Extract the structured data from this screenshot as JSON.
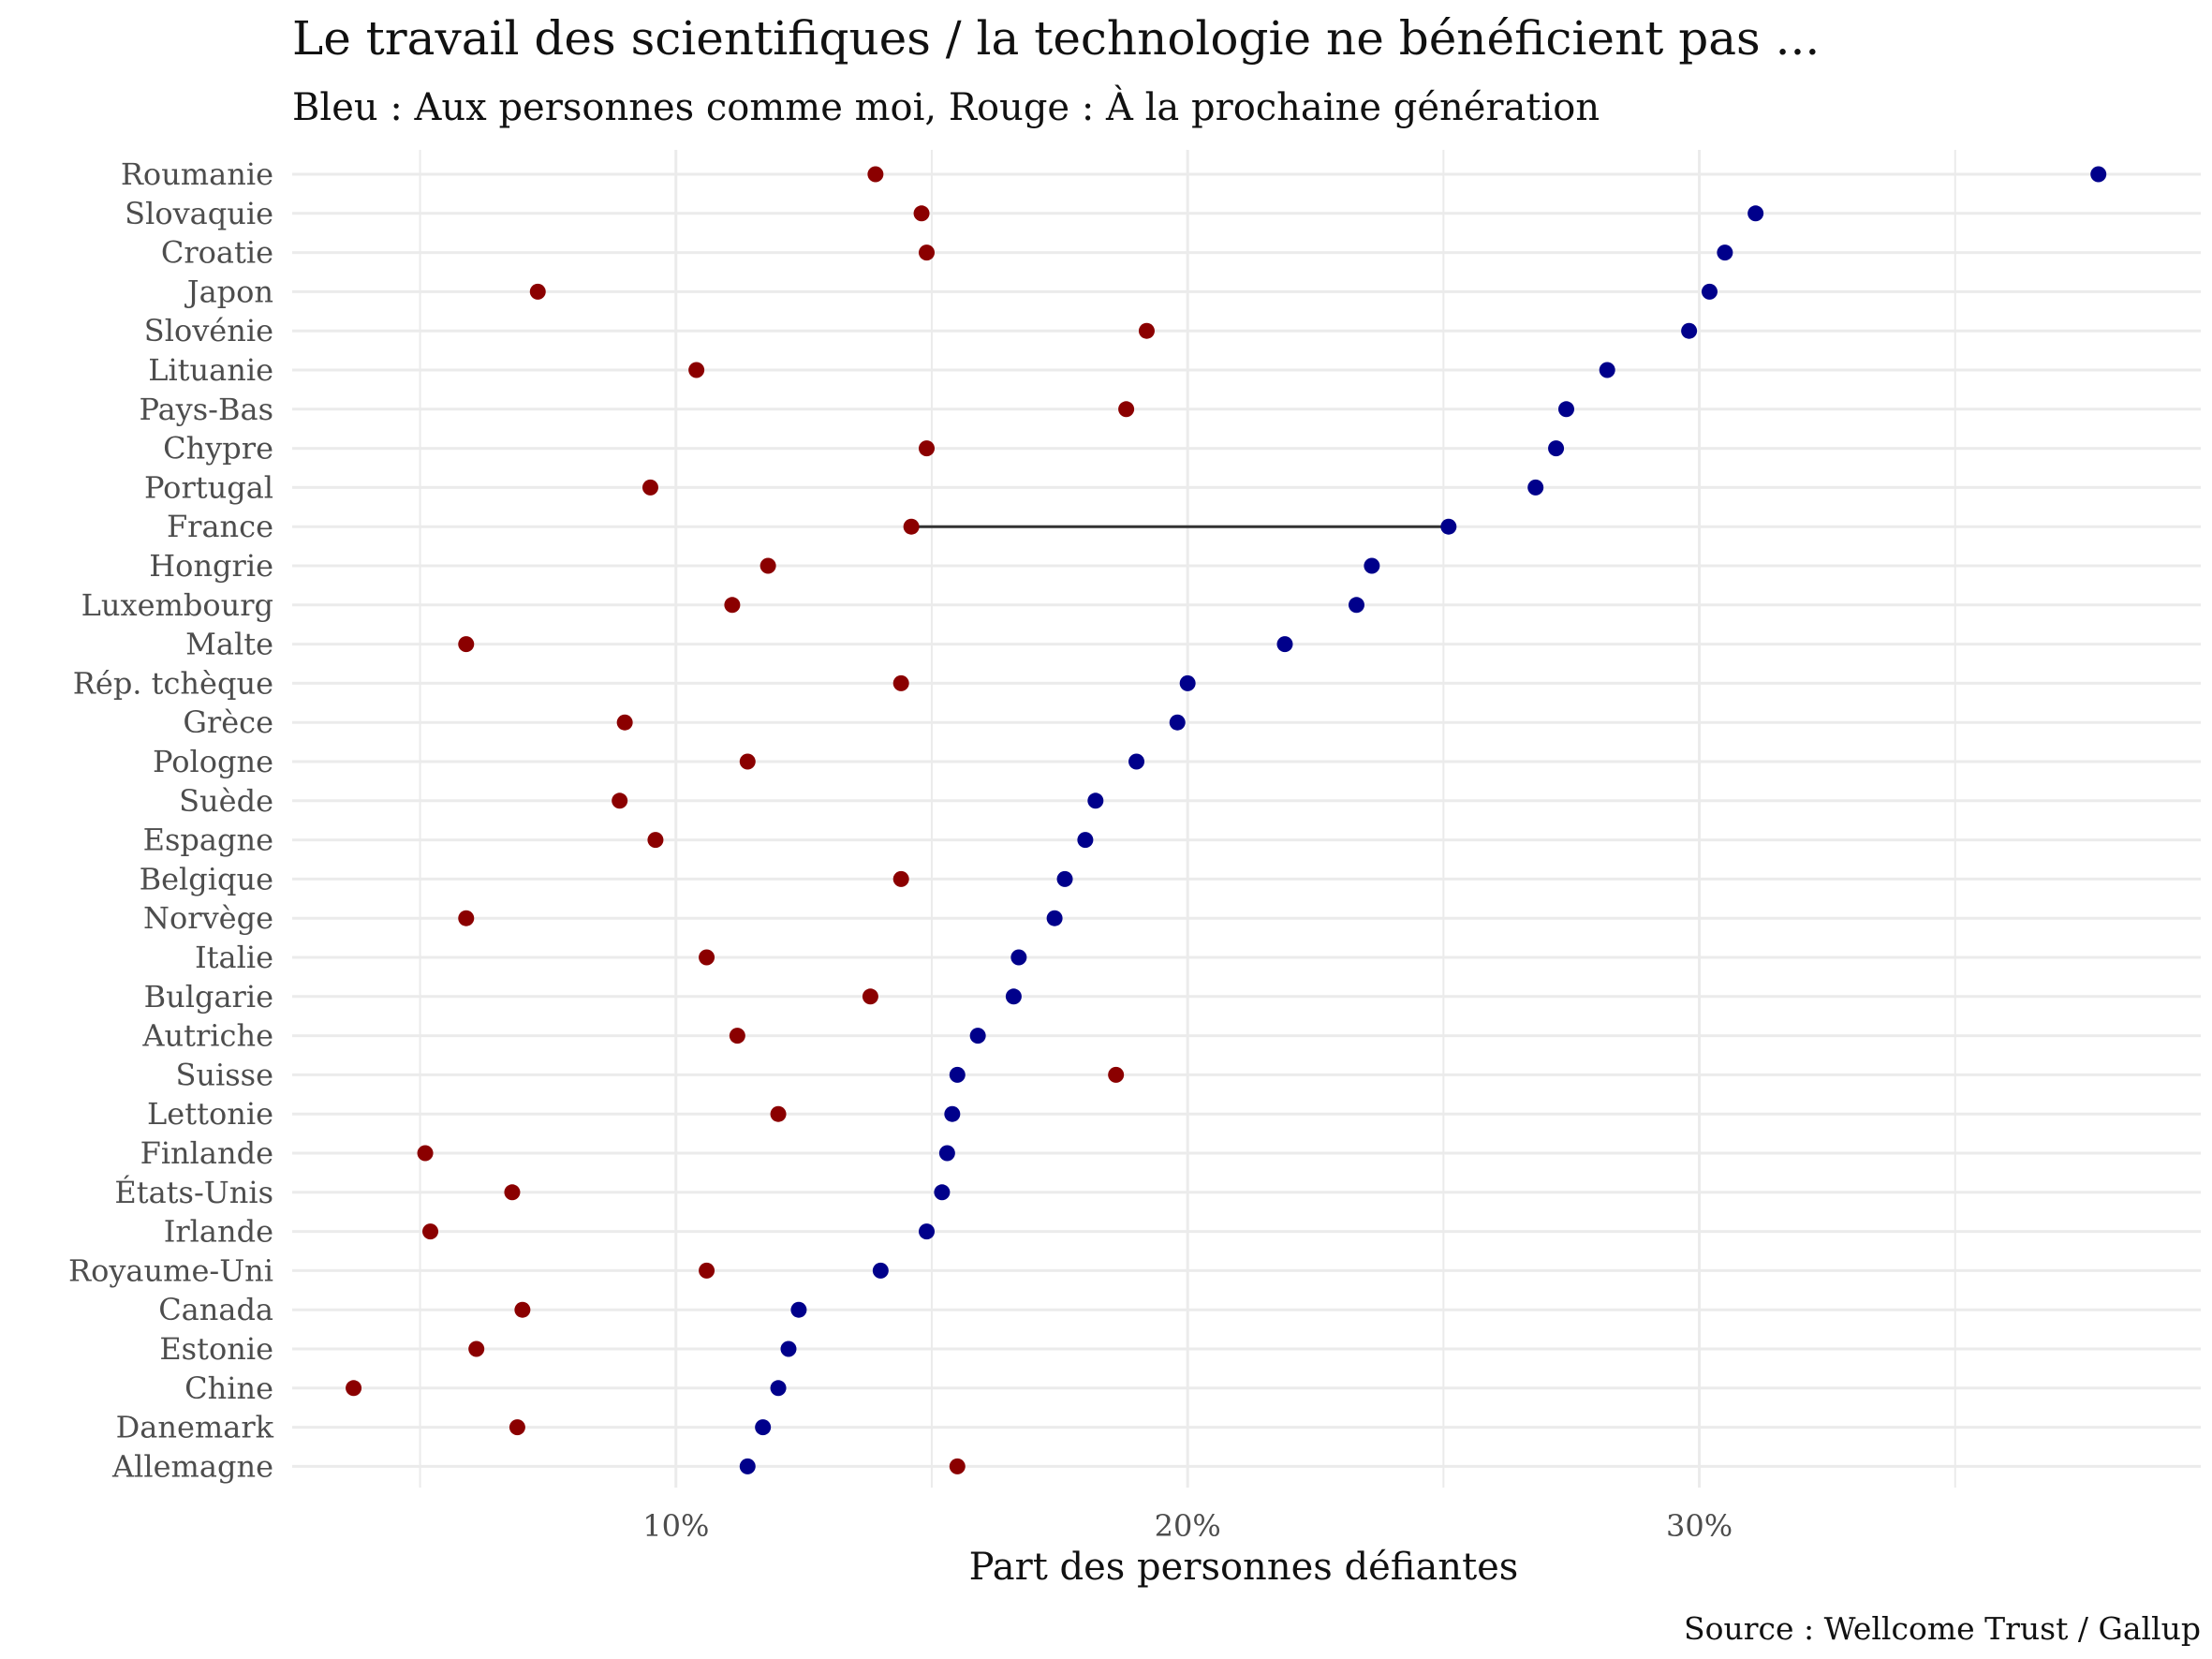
{
  "chart_data": {
    "type": "scatter",
    "subtype": "dumbbell",
    "title": "Le travail des scientifiques / la technologie ne bénéficient pas ...",
    "subtitle": "Bleu : Aux personnes comme moi, Rouge : À la prochaine génération",
    "xlabel": "Part des personnes défiantes",
    "ylabel": "",
    "caption": "Source : Wellcome Trust / Gallup",
    "xlim": [
      2.5,
      39.8
    ],
    "x_ticks": [
      10,
      20,
      30
    ],
    "x_tick_labels": [
      "10%",
      "20%",
      "30%"
    ],
    "x_minor_ticks": [
      5,
      15,
      25,
      35
    ],
    "grid": true,
    "legend": "none",
    "highlight": "France",
    "colors": {
      "moi": "#00008B",
      "generation": "#8B0000",
      "segment": "#333333",
      "grid": "#ebebeb"
    },
    "categories": [
      "Roumanie",
      "Slovaquie",
      "Croatie",
      "Japon",
      "Slovénie",
      "Lituanie",
      "Pays-Bas",
      "Chypre",
      "Portugal",
      "France",
      "Hongrie",
      "Luxembourg",
      "Malte",
      "Rép. tchèque",
      "Grèce",
      "Pologne",
      "Suède",
      "Espagne",
      "Belgique",
      "Norvège",
      "Italie",
      "Bulgarie",
      "Autriche",
      "Suisse",
      "Lettonie",
      "Finlande",
      "États-Unis",
      "Irlande",
      "Royaume-Uni",
      "Canada",
      "Estonie",
      "Chine",
      "Danemark",
      "Allemagne"
    ],
    "series": [
      {
        "key": "moi",
        "color": "#00008B",
        "values": [
          37.8,
          31.1,
          30.5,
          30.2,
          29.8,
          28.2,
          27.4,
          27.2,
          26.8,
          25.1,
          23.6,
          23.3,
          21.9,
          20.0,
          19.8,
          19.0,
          18.2,
          18.0,
          17.6,
          17.4,
          16.7,
          16.6,
          15.9,
          15.5,
          15.4,
          15.3,
          15.2,
          14.9,
          14.0,
          12.4,
          12.2,
          12.0,
          11.7,
          11.4
        ]
      },
      {
        "key": "generation",
        "color": "#8B0000",
        "values": [
          13.9,
          14.8,
          14.9,
          7.3,
          19.2,
          10.4,
          18.8,
          14.9,
          9.5,
          14.6,
          11.8,
          11.1,
          5.9,
          14.4,
          9.0,
          11.4,
          8.9,
          9.6,
          14.4,
          5.9,
          10.6,
          13.8,
          11.2,
          18.6,
          12.0,
          5.1,
          6.8,
          5.2,
          10.6,
          7.0,
          6.1,
          3.7,
          6.9,
          15.5
        ]
      }
    ]
  }
}
